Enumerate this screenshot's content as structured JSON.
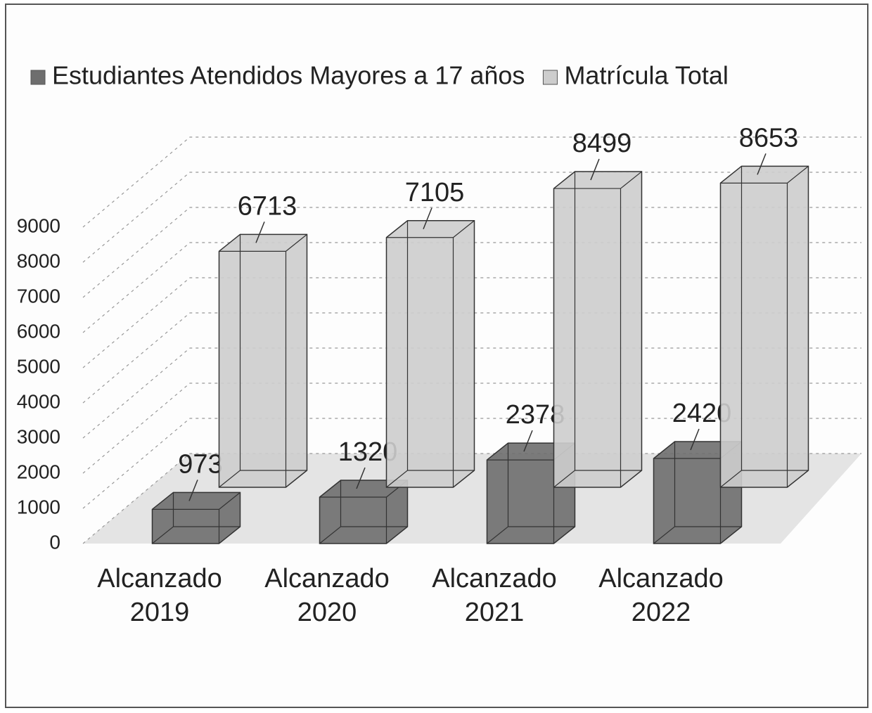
{
  "chart_data": {
    "type": "bar3d",
    "categories": [
      "Alcanzado 2019",
      "Alcanzado 2020",
      "Alcanzado 2021",
      "Alcanzado 2022"
    ],
    "series": [
      {
        "name": "Estudiantes Atendidos Mayores a 17 años",
        "color": "#6e6e6e",
        "values": [
          973,
          1320,
          2378,
          2420
        ]
      },
      {
        "name": "Matrícula Total",
        "color": "#cdcdcd",
        "values": [
          6713,
          7105,
          8499,
          8653
        ]
      }
    ],
    "ylim": [
      0,
      9000
    ],
    "yticks": [
      0,
      1000,
      2000,
      3000,
      4000,
      5000,
      6000,
      7000,
      8000,
      9000
    ],
    "grid": true,
    "legend": "top"
  }
}
